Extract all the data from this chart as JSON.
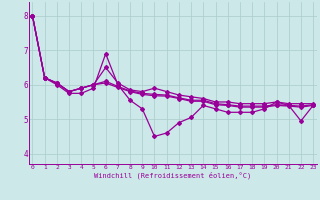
{
  "xlabel": "Windchill (Refroidissement éolien,°C)",
  "background_color": "#cce8e8",
  "line_color": "#990099",
  "grid_color": "#aacccc",
  "x_ticks": [
    0,
    1,
    2,
    3,
    4,
    5,
    6,
    7,
    8,
    9,
    10,
    11,
    12,
    13,
    14,
    15,
    16,
    17,
    18,
    19,
    20,
    21,
    22,
    23
  ],
  "y_ticks": [
    4,
    5,
    6,
    7,
    8
  ],
  "ylim": [
    3.7,
    8.4
  ],
  "xlim": [
    -0.3,
    23.3
  ],
  "lines": [
    [
      8.0,
      6.2,
      6.0,
      5.75,
      5.75,
      5.9,
      6.9,
      6.0,
      5.55,
      5.3,
      4.5,
      4.6,
      4.9,
      5.05,
      5.4,
      5.3,
      5.2,
      5.2,
      5.2,
      5.3,
      5.5,
      5.4,
      4.95,
      5.4
    ],
    [
      8.0,
      6.2,
      6.05,
      5.8,
      5.9,
      6.0,
      6.5,
      6.05,
      5.85,
      5.8,
      5.9,
      5.8,
      5.7,
      5.65,
      5.6,
      5.5,
      5.5,
      5.45,
      5.45,
      5.45,
      5.5,
      5.45,
      5.45,
      5.45
    ],
    [
      8.0,
      6.2,
      6.05,
      5.8,
      5.9,
      6.0,
      6.1,
      5.95,
      5.82,
      5.75,
      5.72,
      5.7,
      5.62,
      5.55,
      5.55,
      5.45,
      5.42,
      5.38,
      5.38,
      5.38,
      5.42,
      5.4,
      5.38,
      5.42
    ],
    [
      8.0,
      6.2,
      6.05,
      5.8,
      5.9,
      6.0,
      6.05,
      5.92,
      5.8,
      5.72,
      5.68,
      5.67,
      5.6,
      5.52,
      5.52,
      5.42,
      5.4,
      5.35,
      5.35,
      5.35,
      5.4,
      5.38,
      5.35,
      5.4
    ]
  ]
}
